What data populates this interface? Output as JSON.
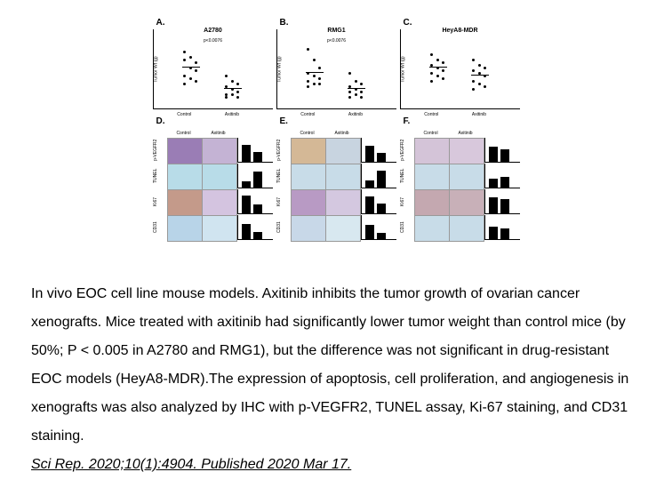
{
  "panels": [
    {
      "label": "A.",
      "title": "A2780",
      "pval": "p<0.0076",
      "ylabel": "Tumor Wt (g)",
      "groups": [
        "Control",
        "Axitinib"
      ],
      "ylim": [
        0,
        2.5
      ],
      "control_points": [
        2.1,
        1.9,
        1.7,
        1.8,
        1.5,
        1.4,
        1.2,
        1.1,
        1.0,
        0.9
      ],
      "treat_points": [
        1.2,
        1.0,
        0.9,
        0.8,
        0.7,
        0.6,
        0.5,
        0.5,
        0.4,
        0.4
      ],
      "control_mean": 1.5,
      "treat_mean": 0.7
    },
    {
      "label": "B.",
      "title": "RMG1",
      "pval": "p<0.0076",
      "ylabel": "Tumor Wt (g)",
      "groups": [
        "Control",
        "Axitinib"
      ],
      "ylim": [
        0,
        2.5
      ],
      "control_points": [
        2.2,
        1.8,
        1.5,
        1.3,
        1.2,
        1.1,
        1.0,
        0.9,
        0.9,
        0.8
      ],
      "treat_points": [
        1.3,
        1.0,
        0.9,
        0.8,
        0.7,
        0.6,
        0.6,
        0.5,
        0.4,
        0.4
      ],
      "control_mean": 1.3,
      "treat_mean": 0.7
    },
    {
      "label": "C.",
      "title": "HeyA8-MDR",
      "pval": "",
      "ylabel": "Tumor Wt (g)",
      "groups": [
        "Control",
        "Axitinib"
      ],
      "ylim": [
        0,
        2.5
      ],
      "control_points": [
        2.0,
        1.8,
        1.7,
        1.6,
        1.5,
        1.4,
        1.3,
        1.2,
        1.1,
        1.0
      ],
      "treat_points": [
        1.8,
        1.6,
        1.5,
        1.4,
        1.3,
        1.2,
        1.0,
        0.9,
        0.8,
        0.7
      ],
      "control_mean": 1.5,
      "treat_mean": 1.2
    }
  ],
  "ihc": {
    "headers": [
      "Control",
      "Axitinib"
    ],
    "row_labels": [
      "p-VEGFR2",
      "TUNEL",
      "Ki67",
      "CD31"
    ],
    "panels": [
      {
        "label": "D.",
        "colors": [
          [
            "#9a7db5",
            "#c4b3d4"
          ],
          [
            "#b8dce8",
            "#b8dce8"
          ],
          [
            "#c49a8a",
            "#d4c4e0"
          ],
          [
            "#b8d4e8",
            "#d0e4f0"
          ]
        ],
        "bars": [
          [
            80,
            45
          ],
          [
            30,
            75
          ],
          [
            85,
            40
          ],
          [
            70,
            35
          ]
        ]
      },
      {
        "label": "E.",
        "colors": [
          [
            "#d4b896",
            "#c8d4e0"
          ],
          [
            "#c8dce8",
            "#c8dce8"
          ],
          [
            "#b89ac4",
            "#d4c8e0"
          ],
          [
            "#c8d8e8",
            "#d8e8f0"
          ]
        ],
        "bars": [
          [
            75,
            40
          ],
          [
            35,
            80
          ],
          [
            80,
            45
          ],
          [
            65,
            30
          ]
        ]
      },
      {
        "label": "F.",
        "colors": [
          [
            "#d4c4d8",
            "#d8c8dc"
          ],
          [
            "#c8dce8",
            "#c8dce8"
          ],
          [
            "#c4a8b0",
            "#c8b0b8"
          ],
          [
            "#c8dce8",
            "#c8dce8"
          ]
        ],
        "bars": [
          [
            70,
            60
          ],
          [
            40,
            50
          ],
          [
            75,
            65
          ],
          [
            60,
            50
          ]
        ]
      }
    ]
  },
  "caption": {
    "text": "In vivo EOC cell line mouse models. Axitinib inhibits the tumor growth of ovarian cancer xenografts. Mice treated with axitinib had significantly lower tumor weight than control mice (by 50%; P < 0.005 in A2780 and RMG1), but the difference was not significant in drug-resistant EOC models (HeyA8-MDR).The expression of apoptosis, cell proliferation, and angiogenesis in xenografts was also analyzed by IHC with p-VEGFR2, TUNEL assay, Ki-67 staining, and CD31 staining.",
    "citation": "Sci Rep. 2020;10(1):4904. Published 2020 Mar 17. "
  },
  "style": {
    "dot_color": "#000000",
    "bar_color": "#000000",
    "figure_width": 480
  }
}
